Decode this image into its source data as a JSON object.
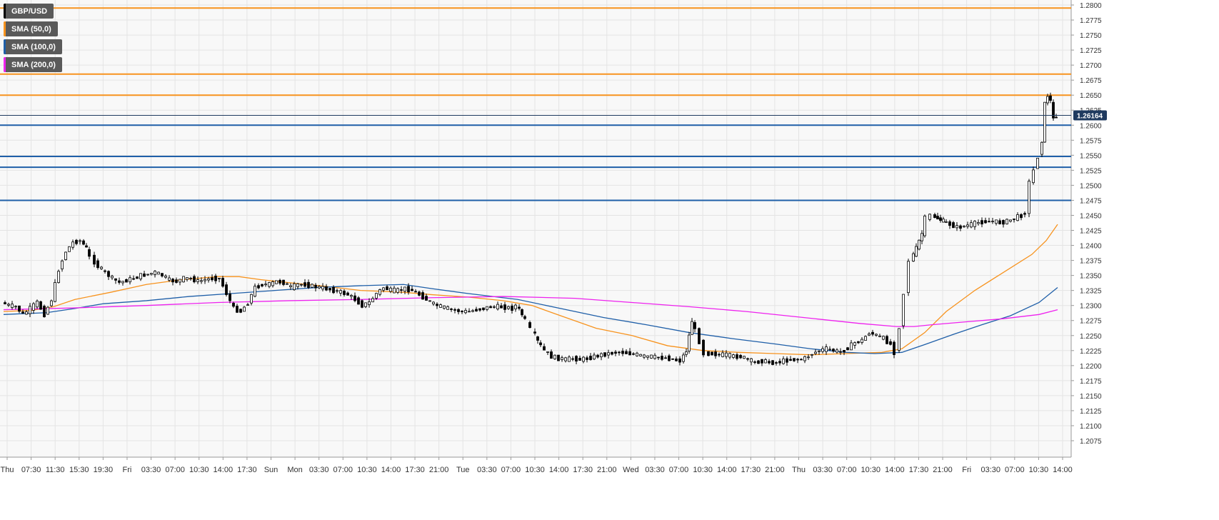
{
  "legend": [
    {
      "label": "GBP/USD",
      "color": "#000000"
    },
    {
      "label": "SMA (50,0)",
      "color": "#f7931e"
    },
    {
      "label": "SMA (100,0)",
      "color": "#1f5fa8"
    },
    {
      "label": "SMA (200,0)",
      "color": "#ee22ee"
    }
  ],
  "price_tag": "1.26164",
  "chart_data": {
    "type": "candlestick",
    "title": "GBP/USD",
    "ylim": [
      1.2075,
      1.28
    ],
    "y_ticks": [
      "1.2800",
      "1.2775",
      "1.2750",
      "1.2725",
      "1.2700",
      "1.2675",
      "1.2650",
      "1.2625",
      "1.2600",
      "1.2575",
      "1.2550",
      "1.2525",
      "1.2500",
      "1.2475",
      "1.2450",
      "1.2425",
      "1.2400",
      "1.2375",
      "1.2350",
      "1.2325",
      "1.2300",
      "1.2275",
      "1.2250",
      "1.2225",
      "1.2200",
      "1.2175",
      "1.2150",
      "1.2125",
      "1.2100",
      "1.2075"
    ],
    "x_ticks": [
      "Thu",
      "07:30",
      "11:30",
      "15:30",
      "19:30",
      "Fri",
      "03:30",
      "07:00",
      "10:30",
      "14:00",
      "17:30",
      "Sun",
      "Mon",
      "03:30",
      "07:00",
      "10:30",
      "14:00",
      "17:30",
      "21:00",
      "Tue",
      "03:30",
      "07:00",
      "10:30",
      "14:00",
      "17:30",
      "21:00",
      "Wed",
      "03:30",
      "07:00",
      "10:30",
      "14:00",
      "17:30",
      "21:00",
      "Thu",
      "03:30",
      "07:00",
      "10:30",
      "14:00",
      "17:30",
      "21:00",
      "Fri",
      "03:30",
      "07:00",
      "10:30",
      "14:00"
    ],
    "last_price": 1.26164,
    "horizontal_lines": [
      {
        "value": 1.2795,
        "color": "#f7931e"
      },
      {
        "value": 1.2685,
        "color": "#f7931e"
      },
      {
        "value": 1.265,
        "color": "#f7931e"
      },
      {
        "value": 1.26,
        "color": "#1f5fa8"
      },
      {
        "value": 1.2548,
        "color": "#1f5fa8"
      },
      {
        "value": 1.253,
        "color": "#1f5fa8"
      },
      {
        "value": 1.2475,
        "color": "#1f5fa8"
      }
    ],
    "price_path": [
      [
        0,
        1.2305
      ],
      [
        10,
        1.23
      ],
      [
        20,
        1.2298
      ],
      [
        30,
        1.2285
      ],
      [
        40,
        1.2295
      ],
      [
        50,
        1.2305
      ],
      [
        60,
        1.2285
      ],
      [
        70,
        1.231
      ],
      [
        80,
        1.236
      ],
      [
        90,
        1.239
      ],
      [
        100,
        1.2405
      ],
      [
        110,
        1.2408
      ],
      [
        118,
        1.2395
      ],
      [
        125,
        1.238
      ],
      [
        135,
        1.2365
      ],
      [
        145,
        1.2355
      ],
      [
        155,
        1.2345
      ],
      [
        165,
        1.2338
      ],
      [
        175,
        1.2342
      ],
      [
        185,
        1.2345
      ],
      [
        195,
        1.235
      ],
      [
        205,
        1.2352
      ],
      [
        215,
        1.2355
      ],
      [
        225,
        1.235
      ],
      [
        235,
        1.2342
      ],
      [
        245,
        1.234
      ],
      [
        255,
        1.2345
      ],
      [
        265,
        1.2345
      ],
      [
        275,
        1.234
      ],
      [
        285,
        1.2343
      ],
      [
        295,
        1.2345
      ],
      [
        305,
        1.2345
      ],
      [
        315,
        1.232
      ],
      [
        325,
        1.2295
      ],
      [
        335,
        1.229
      ],
      [
        345,
        1.2305
      ],
      [
        355,
        1.233
      ],
      [
        365,
        1.2335
      ],
      [
        375,
        1.2335
      ],
      [
        385,
        1.234
      ],
      [
        395,
        1.2338
      ],
      [
        405,
        1.233
      ],
      [
        415,
        1.2335
      ],
      [
        425,
        1.2335
      ],
      [
        435,
        1.2332
      ],
      [
        445,
        1.233
      ],
      [
        455,
        1.2328
      ],
      [
        465,
        1.2325
      ],
      [
        475,
        1.2322
      ],
      [
        485,
        1.2318
      ],
      [
        495,
        1.231
      ],
      [
        505,
        1.23
      ],
      [
        515,
        1.2305
      ],
      [
        525,
        1.232
      ],
      [
        535,
        1.233
      ],
      [
        545,
        1.2325
      ],
      [
        555,
        1.2325
      ],
      [
        565,
        1.2328
      ],
      [
        575,
        1.2325
      ],
      [
        585,
        1.2318
      ],
      [
        595,
        1.231
      ],
      [
        605,
        1.2302
      ],
      [
        615,
        1.2298
      ],
      [
        625,
        1.2295
      ],
      [
        635,
        1.2292
      ],
      [
        645,
        1.229
      ],
      [
        655,
        1.229
      ],
      [
        665,
        1.2293
      ],
      [
        675,
        1.2295
      ],
      [
        685,
        1.2298
      ],
      [
        695,
        1.2298
      ],
      [
        705,
        1.2297
      ],
      [
        715,
        1.2295
      ],
      [
        720,
        1.23
      ],
      [
        728,
        1.2285
      ],
      [
        735,
        1.2275
      ],
      [
        742,
        1.226
      ],
      [
        750,
        1.224
      ],
      [
        760,
        1.2225
      ],
      [
        770,
        1.2215
      ],
      [
        780,
        1.2212
      ],
      [
        790,
        1.221
      ],
      [
        800,
        1.2212
      ],
      [
        810,
        1.221
      ],
      [
        820,
        1.2212
      ],
      [
        830,
        1.2215
      ],
      [
        840,
        1.2218
      ],
      [
        850,
        1.222
      ],
      [
        860,
        1.2222
      ],
      [
        870,
        1.2222
      ],
      [
        880,
        1.222
      ],
      [
        890,
        1.2218
      ],
      [
        900,
        1.2215
      ],
      [
        910,
        1.2215
      ],
      [
        920,
        1.2213
      ],
      [
        930,
        1.2213
      ],
      [
        940,
        1.221
      ],
      [
        950,
        1.2208
      ],
      [
        958,
        1.2225
      ],
      [
        966,
        1.2275
      ],
      [
        972,
        1.2258
      ],
      [
        978,
        1.224
      ],
      [
        985,
        1.222
      ],
      [
        995,
        1.222
      ],
      [
        1005,
        1.2218
      ],
      [
        1015,
        1.2218
      ],
      [
        1025,
        1.2215
      ],
      [
        1035,
        1.2215
      ],
      [
        1045,
        1.221
      ],
      [
        1055,
        1.2205
      ],
      [
        1065,
        1.2208
      ],
      [
        1075,
        1.2205
      ],
      [
        1085,
        1.2205
      ],
      [
        1095,
        1.2208
      ],
      [
        1105,
        1.221
      ],
      [
        1115,
        1.221
      ],
      [
        1125,
        1.2212
      ],
      [
        1135,
        1.222
      ],
      [
        1145,
        1.2225
      ],
      [
        1155,
        1.2228
      ],
      [
        1165,
        1.2225
      ],
      [
        1175,
        1.2222
      ],
      [
        1185,
        1.223
      ],
      [
        1195,
        1.2238
      ],
      [
        1205,
        1.2242
      ],
      [
        1215,
        1.2255
      ],
      [
        1225,
        1.225
      ],
      [
        1235,
        1.2245
      ],
      [
        1245,
        1.2235
      ],
      [
        1252,
        1.2222
      ],
      [
        1258,
        1.2265
      ],
      [
        1265,
        1.232
      ],
      [
        1272,
        1.2375
      ],
      [
        1280,
        1.2395
      ],
      [
        1288,
        1.242
      ],
      [
        1295,
        1.2445
      ],
      [
        1302,
        1.245
      ],
      [
        1310,
        1.2445
      ],
      [
        1318,
        1.244
      ],
      [
        1328,
        1.2435
      ],
      [
        1338,
        1.243
      ],
      [
        1348,
        1.2432
      ],
      [
        1358,
        1.2435
      ],
      [
        1368,
        1.2438
      ],
      [
        1378,
        1.244
      ],
      [
        1388,
        1.244
      ],
      [
        1398,
        1.2438
      ],
      [
        1408,
        1.244
      ],
      [
        1418,
        1.2445
      ],
      [
        1428,
        1.245
      ],
      [
        1434,
        1.2455
      ],
      [
        1440,
        1.2505
      ],
      [
        1446,
        1.2525
      ],
      [
        1452,
        1.2548
      ],
      [
        1456,
        1.2575
      ],
      [
        1460,
        1.2635
      ],
      [
        1464,
        1.265
      ],
      [
        1468,
        1.264
      ],
      [
        1472,
        1.261
      ],
      [
        1476,
        1.2616
      ]
    ],
    "series": [
      {
        "name": "SMA (50,0)",
        "color": "#f7931e",
        "points": [
          [
            0,
            1.229
          ],
          [
            40,
            1.2292
          ],
          [
            70,
            1.2298
          ],
          [
            100,
            1.231
          ],
          [
            150,
            1.2322
          ],
          [
            200,
            1.2335
          ],
          [
            250,
            1.2343
          ],
          [
            300,
            1.2348
          ],
          [
            330,
            1.2348
          ],
          [
            360,
            1.2343
          ],
          [
            400,
            1.2338
          ],
          [
            450,
            1.2332
          ],
          [
            500,
            1.2325
          ],
          [
            560,
            1.2322
          ],
          [
            600,
            1.2318
          ],
          [
            650,
            1.2314
          ],
          [
            700,
            1.2308
          ],
          [
            740,
            1.23
          ],
          [
            780,
            1.2283
          ],
          [
            830,
            1.2262
          ],
          [
            880,
            1.225
          ],
          [
            930,
            1.2233
          ],
          [
            980,
            1.2225
          ],
          [
            1030,
            1.2222
          ],
          [
            1080,
            1.222
          ],
          [
            1130,
            1.2218
          ],
          [
            1180,
            1.222
          ],
          [
            1230,
            1.2222
          ],
          [
            1258,
            1.2228
          ],
          [
            1290,
            1.2255
          ],
          [
            1320,
            1.229
          ],
          [
            1360,
            1.2325
          ],
          [
            1400,
            1.2355
          ],
          [
            1440,
            1.2385
          ],
          [
            1460,
            1.2408
          ],
          [
            1476,
            1.2435
          ]
        ]
      },
      {
        "name": "SMA (100,0)",
        "color": "#1f5fa8",
        "points": [
          [
            0,
            1.2285
          ],
          [
            60,
            1.2288
          ],
          [
            100,
            1.2295
          ],
          [
            140,
            1.2303
          ],
          [
            200,
            1.2308
          ],
          [
            260,
            1.2315
          ],
          [
            320,
            1.232
          ],
          [
            380,
            1.2325
          ],
          [
            440,
            1.233
          ],
          [
            500,
            1.2333
          ],
          [
            560,
            1.2335
          ],
          [
            600,
            1.2328
          ],
          [
            650,
            1.232
          ],
          [
            720,
            1.231
          ],
          [
            780,
            1.2295
          ],
          [
            840,
            1.228
          ],
          [
            900,
            1.2268
          ],
          [
            960,
            1.2255
          ],
          [
            1020,
            1.2245
          ],
          [
            1080,
            1.2236
          ],
          [
            1130,
            1.2228
          ],
          [
            1180,
            1.2222
          ],
          [
            1220,
            1.222
          ],
          [
            1258,
            1.2222
          ],
          [
            1290,
            1.2235
          ],
          [
            1330,
            1.2252
          ],
          [
            1370,
            1.2268
          ],
          [
            1410,
            1.2283
          ],
          [
            1450,
            1.2305
          ],
          [
            1476,
            1.233
          ]
        ]
      },
      {
        "name": "SMA (200,0)",
        "color": "#ee22ee",
        "points": [
          [
            0,
            1.2293
          ],
          [
            100,
            1.2296
          ],
          [
            200,
            1.23
          ],
          [
            300,
            1.2305
          ],
          [
            400,
            1.2308
          ],
          [
            500,
            1.231
          ],
          [
            600,
            1.2313
          ],
          [
            700,
            1.2315
          ],
          [
            800,
            1.2312
          ],
          [
            880,
            1.2305
          ],
          [
            960,
            1.2298
          ],
          [
            1040,
            1.229
          ],
          [
            1120,
            1.228
          ],
          [
            1200,
            1.227
          ],
          [
            1250,
            1.2265
          ],
          [
            1275,
            1.2265
          ],
          [
            1300,
            1.2268
          ],
          [
            1350,
            1.2273
          ],
          [
            1400,
            1.2278
          ],
          [
            1450,
            1.2285
          ],
          [
            1476,
            1.2293
          ]
        ]
      }
    ]
  }
}
